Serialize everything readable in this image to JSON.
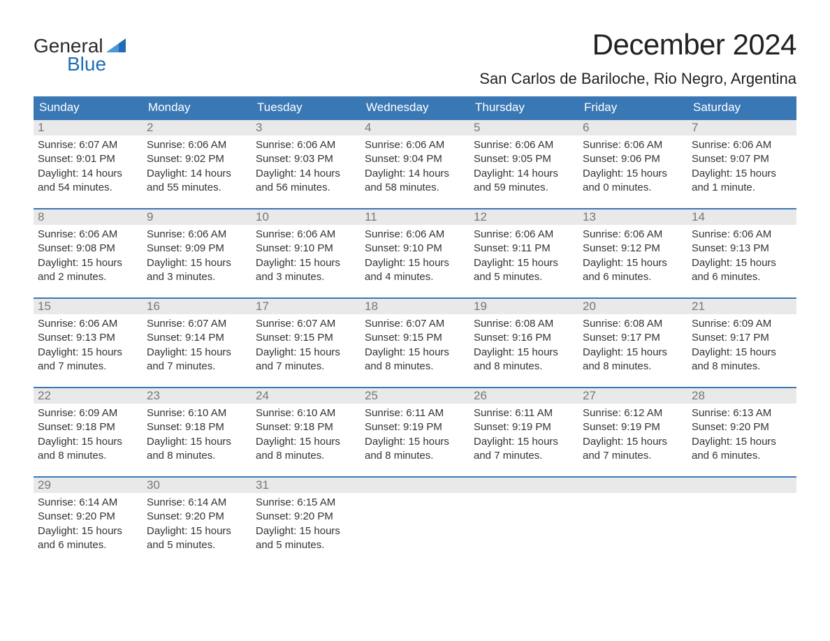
{
  "logo": {
    "text1": "General",
    "text2": "Blue",
    "flag_color": "#1f6db5"
  },
  "title": "December 2024",
  "location": "San Carlos de Bariloche, Rio Negro, Argentina",
  "colors": {
    "header_bg": "#3a78b5",
    "header_text": "#ffffff",
    "week_border": "#3a78b5",
    "daynum_bg": "#e9e9e9",
    "daynum_text": "#777777",
    "body_text": "#333333",
    "background": "#ffffff",
    "logo_blue": "#1f6db5"
  },
  "typography": {
    "title_fontsize": 42,
    "location_fontsize": 22,
    "header_fontsize": 17,
    "daynum_fontsize": 17,
    "body_fontsize": 15
  },
  "day_headers": [
    "Sunday",
    "Monday",
    "Tuesday",
    "Wednesday",
    "Thursday",
    "Friday",
    "Saturday"
  ],
  "weeks": [
    [
      {
        "n": "1",
        "sunrise": "Sunrise: 6:07 AM",
        "sunset": "Sunset: 9:01 PM",
        "d1": "Daylight: 14 hours",
        "d2": "and 54 minutes."
      },
      {
        "n": "2",
        "sunrise": "Sunrise: 6:06 AM",
        "sunset": "Sunset: 9:02 PM",
        "d1": "Daylight: 14 hours",
        "d2": "and 55 minutes."
      },
      {
        "n": "3",
        "sunrise": "Sunrise: 6:06 AM",
        "sunset": "Sunset: 9:03 PM",
        "d1": "Daylight: 14 hours",
        "d2": "and 56 minutes."
      },
      {
        "n": "4",
        "sunrise": "Sunrise: 6:06 AM",
        "sunset": "Sunset: 9:04 PM",
        "d1": "Daylight: 14 hours",
        "d2": "and 58 minutes."
      },
      {
        "n": "5",
        "sunrise": "Sunrise: 6:06 AM",
        "sunset": "Sunset: 9:05 PM",
        "d1": "Daylight: 14 hours",
        "d2": "and 59 minutes."
      },
      {
        "n": "6",
        "sunrise": "Sunrise: 6:06 AM",
        "sunset": "Sunset: 9:06 PM",
        "d1": "Daylight: 15 hours",
        "d2": "and 0 minutes."
      },
      {
        "n": "7",
        "sunrise": "Sunrise: 6:06 AM",
        "sunset": "Sunset: 9:07 PM",
        "d1": "Daylight: 15 hours",
        "d2": "and 1 minute."
      }
    ],
    [
      {
        "n": "8",
        "sunrise": "Sunrise: 6:06 AM",
        "sunset": "Sunset: 9:08 PM",
        "d1": "Daylight: 15 hours",
        "d2": "and 2 minutes."
      },
      {
        "n": "9",
        "sunrise": "Sunrise: 6:06 AM",
        "sunset": "Sunset: 9:09 PM",
        "d1": "Daylight: 15 hours",
        "d2": "and 3 minutes."
      },
      {
        "n": "10",
        "sunrise": "Sunrise: 6:06 AM",
        "sunset": "Sunset: 9:10 PM",
        "d1": "Daylight: 15 hours",
        "d2": "and 3 minutes."
      },
      {
        "n": "11",
        "sunrise": "Sunrise: 6:06 AM",
        "sunset": "Sunset: 9:10 PM",
        "d1": "Daylight: 15 hours",
        "d2": "and 4 minutes."
      },
      {
        "n": "12",
        "sunrise": "Sunrise: 6:06 AM",
        "sunset": "Sunset: 9:11 PM",
        "d1": "Daylight: 15 hours",
        "d2": "and 5 minutes."
      },
      {
        "n": "13",
        "sunrise": "Sunrise: 6:06 AM",
        "sunset": "Sunset: 9:12 PM",
        "d1": "Daylight: 15 hours",
        "d2": "and 6 minutes."
      },
      {
        "n": "14",
        "sunrise": "Sunrise: 6:06 AM",
        "sunset": "Sunset: 9:13 PM",
        "d1": "Daylight: 15 hours",
        "d2": "and 6 minutes."
      }
    ],
    [
      {
        "n": "15",
        "sunrise": "Sunrise: 6:06 AM",
        "sunset": "Sunset: 9:13 PM",
        "d1": "Daylight: 15 hours",
        "d2": "and 7 minutes."
      },
      {
        "n": "16",
        "sunrise": "Sunrise: 6:07 AM",
        "sunset": "Sunset: 9:14 PM",
        "d1": "Daylight: 15 hours",
        "d2": "and 7 minutes."
      },
      {
        "n": "17",
        "sunrise": "Sunrise: 6:07 AM",
        "sunset": "Sunset: 9:15 PM",
        "d1": "Daylight: 15 hours",
        "d2": "and 7 minutes."
      },
      {
        "n": "18",
        "sunrise": "Sunrise: 6:07 AM",
        "sunset": "Sunset: 9:15 PM",
        "d1": "Daylight: 15 hours",
        "d2": "and 8 minutes."
      },
      {
        "n": "19",
        "sunrise": "Sunrise: 6:08 AM",
        "sunset": "Sunset: 9:16 PM",
        "d1": "Daylight: 15 hours",
        "d2": "and 8 minutes."
      },
      {
        "n": "20",
        "sunrise": "Sunrise: 6:08 AM",
        "sunset": "Sunset: 9:17 PM",
        "d1": "Daylight: 15 hours",
        "d2": "and 8 minutes."
      },
      {
        "n": "21",
        "sunrise": "Sunrise: 6:09 AM",
        "sunset": "Sunset: 9:17 PM",
        "d1": "Daylight: 15 hours",
        "d2": "and 8 minutes."
      }
    ],
    [
      {
        "n": "22",
        "sunrise": "Sunrise: 6:09 AM",
        "sunset": "Sunset: 9:18 PM",
        "d1": "Daylight: 15 hours",
        "d2": "and 8 minutes."
      },
      {
        "n": "23",
        "sunrise": "Sunrise: 6:10 AM",
        "sunset": "Sunset: 9:18 PM",
        "d1": "Daylight: 15 hours",
        "d2": "and 8 minutes."
      },
      {
        "n": "24",
        "sunrise": "Sunrise: 6:10 AM",
        "sunset": "Sunset: 9:18 PM",
        "d1": "Daylight: 15 hours",
        "d2": "and 8 minutes."
      },
      {
        "n": "25",
        "sunrise": "Sunrise: 6:11 AM",
        "sunset": "Sunset: 9:19 PM",
        "d1": "Daylight: 15 hours",
        "d2": "and 8 minutes."
      },
      {
        "n": "26",
        "sunrise": "Sunrise: 6:11 AM",
        "sunset": "Sunset: 9:19 PM",
        "d1": "Daylight: 15 hours",
        "d2": "and 7 minutes."
      },
      {
        "n": "27",
        "sunrise": "Sunrise: 6:12 AM",
        "sunset": "Sunset: 9:19 PM",
        "d1": "Daylight: 15 hours",
        "d2": "and 7 minutes."
      },
      {
        "n": "28",
        "sunrise": "Sunrise: 6:13 AM",
        "sunset": "Sunset: 9:20 PM",
        "d1": "Daylight: 15 hours",
        "d2": "and 6 minutes."
      }
    ],
    [
      {
        "n": "29",
        "sunrise": "Sunrise: 6:14 AM",
        "sunset": "Sunset: 9:20 PM",
        "d1": "Daylight: 15 hours",
        "d2": "and 6 minutes."
      },
      {
        "n": "30",
        "sunrise": "Sunrise: 6:14 AM",
        "sunset": "Sunset: 9:20 PM",
        "d1": "Daylight: 15 hours",
        "d2": "and 5 minutes."
      },
      {
        "n": "31",
        "sunrise": "Sunrise: 6:15 AM",
        "sunset": "Sunset: 9:20 PM",
        "d1": "Daylight: 15 hours",
        "d2": "and 5 minutes."
      },
      null,
      null,
      null,
      null
    ]
  ]
}
